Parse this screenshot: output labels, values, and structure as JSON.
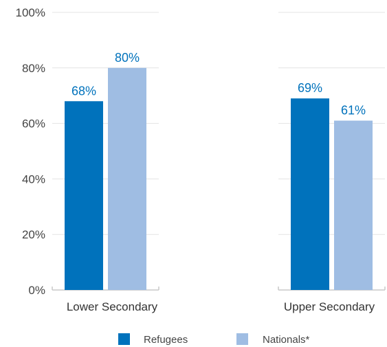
{
  "chart_data": {
    "type": "bar",
    "categories": [
      "Lower Secondary",
      "Upper Secondary"
    ],
    "series": [
      {
        "name": "Refugees",
        "values": [
          68,
          69
        ],
        "color": "#0072bc",
        "labels": [
          "68%",
          "69%"
        ]
      },
      {
        "name": "Nationals*",
        "values": [
          80,
          61
        ],
        "color": "#9fbde3",
        "labels": [
          "80%",
          "61%"
        ]
      }
    ],
    "data_label_color": "#0072bc",
    "y_ticks": [
      0,
      20,
      40,
      60,
      80,
      100
    ],
    "y_tick_labels": [
      "0%",
      "20%",
      "40%",
      "60%",
      "80%",
      "100%"
    ],
    "ylim": [
      0,
      100
    ],
    "grid": true,
    "legend_position": "bottom"
  }
}
